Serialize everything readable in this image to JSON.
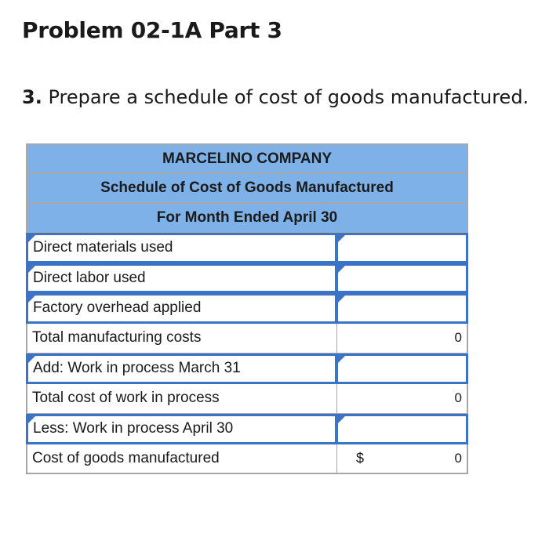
{
  "title": "Problem 02-1A Part 3",
  "instruction": {
    "number": "3.",
    "text": "Prepare a schedule of cost of goods manufactured."
  },
  "schedule": {
    "headers": [
      "MARCELINO COMPANY",
      "Schedule of Cost of Goods Manufactured",
      "For Month Ended April 30"
    ],
    "rows": [
      {
        "label": "Direct materials used",
        "value": "",
        "currency": ""
      },
      {
        "label": "Direct labor used",
        "value": "",
        "currency": ""
      },
      {
        "label": "Factory overhead applied",
        "value": "",
        "currency": ""
      },
      {
        "label": "Total manufacturing costs",
        "value": "0",
        "currency": ""
      },
      {
        "label": "Add: Work in process March 31",
        "value": "",
        "currency": ""
      },
      {
        "label": "Total cost of work in process",
        "value": "0",
        "currency": ""
      },
      {
        "label": "Less: Work in process April 30",
        "value": "",
        "currency": ""
      },
      {
        "label": "Cost of goods manufactured",
        "value": "0",
        "currency": "$"
      }
    ]
  },
  "colors": {
    "header_bg": "#7eb1e8",
    "input_border": "#3b74c7",
    "grid": "#a7a7a7"
  }
}
